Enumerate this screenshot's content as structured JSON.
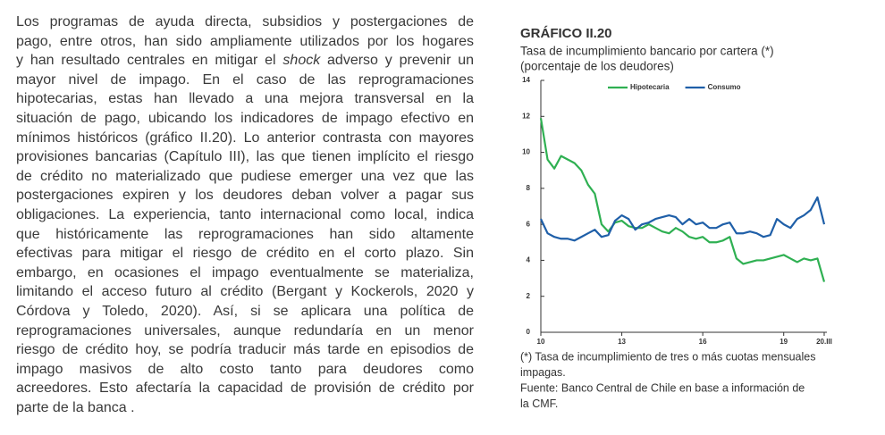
{
  "paragraph": {
    "lines": [
      "Los programas de ayuda directa, subsidios y postergaciones de",
      "pago, entre otros, han sido ampliamente utilizados por los hogares",
      [
        "y han resultado centrales en mitigar el ",
        "shock",
        " adverso y prevenir un"
      ],
      "mayor nivel de impago. En el caso de las reprogramaciones",
      "hipotecarias, estas han llevado a una mejora transversal en la",
      "situación de pago, ubicando los indicadores de impago efectivo en",
      "mínimos históricos (gráfico II.20). Lo anterior contrasta con mayores",
      "provisiones bancarias (Capítulo III), las que tienen implícito el riesgo",
      "de crédito no materializado que pudiese emerger una vez que las",
      "postergaciones expiren y los deudores deban volver a pagar sus",
      "obligaciones. La experiencia, tanto internacional como local, indica",
      "que históricamente las reprogramaciones han sido altamente",
      "efectivas para mitigar el riesgo de crédito en el corto plazo. Sin",
      "embargo, en ocasiones el impago eventualmente se materializa,",
      "limitando el acceso futuro al crédito (Bergant y Kockerols, 2020 y",
      "Córdova y Toledo, 2020). Así, si se aplicara una política de",
      "reprogramaciones universales, aunque redundaría en un menor",
      "riesgo de crédito hoy, se podría traducir más tarde en episodios de",
      "impago masivos de alto costo tanto para deudores como",
      "acreedores. Esto afectaría la capacidad de provisión de crédito por",
      "parte de la banca ."
    ]
  },
  "chart_data": {
    "type": "line",
    "title": "GRÁFICO II.20",
    "subtitle": [
      "Tasa de incumplimiento bancario por cartera (*)",
      "(porcentaje de los deudores)"
    ],
    "x": [
      2010,
      2010.25,
      2010.5,
      2010.75,
      2011,
      2011.25,
      2011.5,
      2011.75,
      2012,
      2012.25,
      2012.5,
      2012.75,
      2013,
      2013.25,
      2013.5,
      2013.75,
      2014,
      2014.25,
      2014.5,
      2014.75,
      2015,
      2015.25,
      2015.5,
      2015.75,
      2016,
      2016.25,
      2016.5,
      2016.75,
      2017,
      2017.25,
      2017.5,
      2017.75,
      2018,
      2018.25,
      2018.5,
      2018.75,
      2019,
      2019.25,
      2019.5,
      2019.75,
      2020,
      2020.25,
      2020.5
    ],
    "series": [
      {
        "name": "Hipotecaria",
        "color": "#2fb052",
        "values": [
          11.9,
          9.6,
          9.1,
          9.8,
          9.6,
          9.4,
          9.0,
          8.2,
          7.7,
          6.0,
          5.6,
          6.1,
          6.2,
          5.9,
          5.8,
          5.8,
          6.0,
          5.8,
          5.6,
          5.5,
          5.8,
          5.6,
          5.3,
          5.2,
          5.3,
          5.0,
          5.0,
          5.1,
          5.3,
          4.1,
          3.8,
          3.9,
          4.0,
          4.0,
          4.1,
          4.2,
          4.3,
          4.1,
          3.9,
          4.1,
          4.0,
          4.1,
          2.8
        ]
      },
      {
        "name": "Consumo",
        "color": "#1f5fa8",
        "values": [
          6.3,
          5.5,
          5.3,
          5.2,
          5.2,
          5.1,
          5.3,
          5.5,
          5.7,
          5.3,
          5.4,
          6.2,
          6.5,
          6.3,
          5.7,
          6.0,
          6.1,
          6.3,
          6.4,
          6.5,
          6.4,
          6.0,
          6.3,
          6.0,
          6.1,
          5.8,
          5.8,
          6.0,
          6.1,
          5.5,
          5.5,
          5.6,
          5.5,
          5.3,
          5.4,
          6.3,
          6.0,
          5.8,
          6.3,
          6.5,
          6.8,
          7.5,
          6.0
        ]
      }
    ],
    "xlim": [
      2010,
      2020.6
    ],
    "xticks": [
      {
        "value": 2010,
        "label": "10"
      },
      {
        "value": 2013,
        "label": "13"
      },
      {
        "value": 2016,
        "label": "16"
      },
      {
        "value": 2019,
        "label": "19"
      },
      {
        "value": 2020.5,
        "label": "20.III"
      }
    ],
    "ylim": [
      0,
      14
    ],
    "yticks": [
      0,
      2,
      4,
      6,
      8,
      10,
      12,
      14
    ],
    "grid": false,
    "legend": "top",
    "notes": [
      "(*) Tasa de incumplimiento de tres o más cuotas mensuales",
      "impagas.",
      "Fuente: Banco Central de Chile en base a información de",
      "la CMF."
    ]
  }
}
